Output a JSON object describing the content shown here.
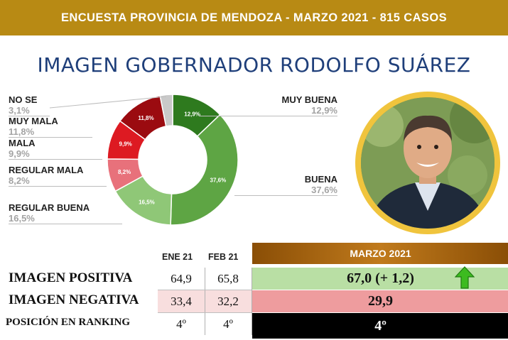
{
  "header": {
    "banner": "ENCUESTA PROVINCIA DE MENDOZA - MARZO 2021 - 815 CASOS"
  },
  "chart_data": {
    "type": "pie",
    "title": "IMAGEN GOBERNADOR RODOLFO SUÁREZ",
    "categories": [
      "MUY BUENA",
      "BUENA",
      "REGULAR BUENA",
      "REGULAR MALA",
      "MALA",
      "MUY MALA",
      "NO SE"
    ],
    "values": [
      12.9,
      37.6,
      16.5,
      8.2,
      9.9,
      11.8,
      3.1
    ],
    "value_labels": [
      "12,9%",
      "37,6%",
      "16,5%",
      "8,2%",
      "9,9%",
      "11,8%",
      "3,1%"
    ],
    "slice_labels": [
      "12,9%",
      "37,6%",
      "16,5%",
      "8,2%",
      "9,9%",
      "11,8%",
      ""
    ],
    "colors": [
      "#2e7a1e",
      "#5ea544",
      "#8fc777",
      "#e8717b",
      "#dd1a22",
      "#9b0b10",
      "#c9c9c9"
    ],
    "donut": true
  },
  "legend": {
    "left": [
      {
        "name": "NO SE",
        "pct": "3,1%"
      },
      {
        "name": "MUY MALA",
        "pct": "11,8%"
      },
      {
        "name": "MALA",
        "pct": "9,9%"
      },
      {
        "name": "REGULAR MALA",
        "pct": "8,2%"
      },
      {
        "name": "REGULAR BUENA",
        "pct": "16,5%"
      }
    ],
    "right": [
      {
        "name": "MUY BUENA",
        "pct": "12,9%"
      },
      {
        "name": "BUENA",
        "pct": "37,6%"
      }
    ]
  },
  "table": {
    "col_ene": "ENE 21",
    "col_feb": "FEB 21",
    "col_marzo": "MARZO 2021",
    "rows": [
      {
        "label": "IMAGEN POSITIVA",
        "ene": "64,9",
        "feb": "65,8",
        "marzo": "67,0 (+ 1,2)"
      },
      {
        "label": "IMAGEN NEGATIVA",
        "ene": "33,4",
        "feb": "32,2",
        "marzo": "29,9"
      },
      {
        "label": "POSICIÓN EN RANKING",
        "ene": "4º",
        "feb": "4º",
        "marzo": "4º"
      }
    ],
    "colors": {
      "positive": "#b9dfa4",
      "negative": "#ee9c9e",
      "ranking": "#000000",
      "arrow": "#3dbb20"
    }
  },
  "icons": {
    "trend": "arrow-up-icon",
    "portrait": "governor-portrait"
  }
}
